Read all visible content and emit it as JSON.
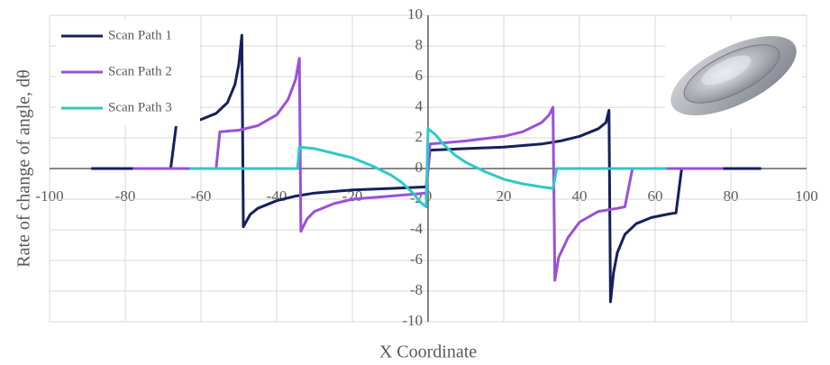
{
  "chart_data": {
    "type": "line",
    "x_label": "X Coordinate",
    "y_label": "Rate of change of angle, dθ",
    "xlim": [
      -100,
      100
    ],
    "xticks": [
      -100,
      -80,
      -60,
      -40,
      -20,
      0,
      20,
      40,
      60,
      80,
      100
    ],
    "ylim": [
      -10,
      10
    ],
    "yticks": [
      -10,
      -8,
      -6,
      -4,
      -2,
      0,
      2,
      4,
      6,
      8,
      10
    ],
    "grid": true,
    "legend": "top-left",
    "series": [
      {
        "name": "Scan Path 1",
        "color": "#15205c",
        "x": [
          -89,
          -68,
          -66.5,
          -65,
          -60,
          -56,
          -53,
          -51,
          -50,
          -49.2,
          -48.8,
          -47,
          -45,
          -40,
          -35,
          -30,
          -20,
          -10,
          -0.5,
          0.5,
          10,
          20,
          30,
          35,
          40,
          45,
          47,
          47.8,
          48.2,
          49,
          50,
          52,
          55,
          59,
          64,
          65.5,
          67,
          88
        ],
        "values": [
          0,
          0,
          2.9,
          2.95,
          3.2,
          3.6,
          4.3,
          5.5,
          6.8,
          8.7,
          -3.8,
          -3.0,
          -2.6,
          -2.1,
          -1.8,
          -1.6,
          -1.4,
          -1.3,
          -1.2,
          1.2,
          1.3,
          1.4,
          1.6,
          1.8,
          2.1,
          2.6,
          3.0,
          3.8,
          -8.7,
          -6.8,
          -5.5,
          -4.3,
          -3.6,
          -3.2,
          -2.95,
          -2.9,
          0,
          0
        ]
      },
      {
        "name": "Scan Path 2",
        "color": "#9b50d8",
        "x": [
          -78,
          -56,
          -55,
          -50,
          -45,
          -40,
          -37,
          -35,
          -34,
          -33.6,
          -32,
          -30,
          -25,
          -20,
          -10,
          -0.5,
          0.5,
          10,
          20,
          25,
          30,
          32,
          33,
          33.5,
          34.5,
          37,
          40,
          45,
          50,
          52,
          54,
          78
        ],
        "values": [
          0,
          0,
          2.4,
          2.5,
          2.8,
          3.5,
          4.5,
          5.8,
          7.2,
          -4.1,
          -3.3,
          -2.8,
          -2.3,
          -2.0,
          -1.8,
          -1.6,
          1.6,
          1.8,
          2.1,
          2.4,
          3.0,
          3.5,
          4.0,
          -7.3,
          -5.8,
          -4.5,
          -3.5,
          -2.8,
          -2.6,
          -2.5,
          0,
          0
        ]
      },
      {
        "name": "Scan Path 3",
        "color": "#2ec8c8",
        "x": [
          -63,
          -34.5,
          -34,
          -30,
          -25,
          -20,
          -15,
          -10,
          -7,
          -4,
          -2,
          -0.5,
          0,
          0.5,
          2,
          4,
          7,
          10,
          15,
          20,
          25,
          30,
          33,
          34,
          63
        ],
        "values": [
          0,
          0,
          1.4,
          1.3,
          1.0,
          0.7,
          0.2,
          -0.4,
          -0.9,
          -1.6,
          -2.2,
          -2.5,
          2.6,
          2.5,
          2.2,
          1.6,
          0.9,
          0.4,
          -0.2,
          -0.7,
          -1.0,
          -1.2,
          -1.3,
          0,
          0
        ]
      }
    ]
  }
}
